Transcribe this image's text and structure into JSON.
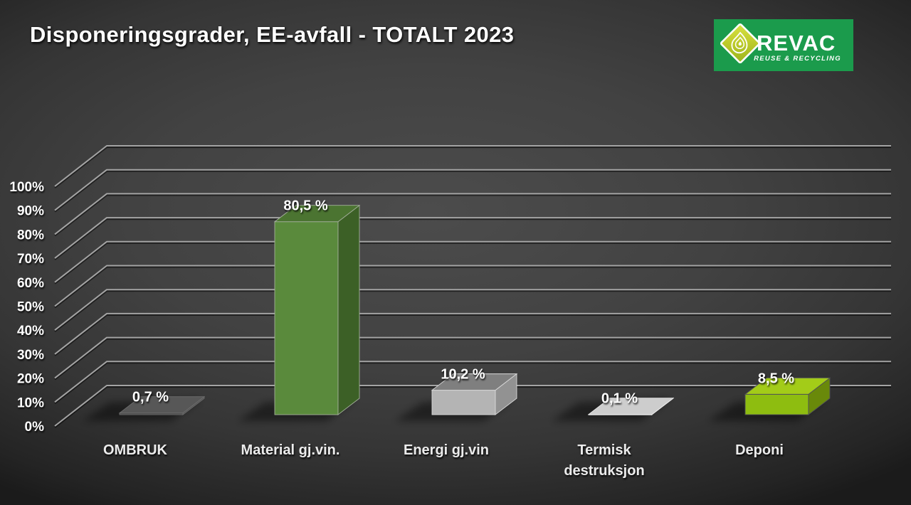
{
  "slide": {
    "title": "Disponeringsgrader, EE-avfall - TOTALT 2023"
  },
  "logo": {
    "brand": "REVAC",
    "tagline": "REUSE & RECYCLING",
    "bg_color": "#1b9b4c",
    "emblem": "drop-in-diamond-icon"
  },
  "chart_data": {
    "type": "bar",
    "style": "3d-perspective-column",
    "title": "Disponeringsgrader, EE-avfall - TOTALT 2023",
    "categories": [
      "OMBRUK",
      "Material gj.vin.",
      "Energi gj.vin",
      "Termisk destruksjon",
      "Deponi"
    ],
    "category_lines": [
      [
        "OMBRUK"
      ],
      [
        "Material gj.vin."
      ],
      [
        "Energi gj.vin"
      ],
      [
        "Termisk",
        "destruksjon"
      ],
      [
        "Deponi"
      ]
    ],
    "values": [
      0.7,
      80.5,
      10.2,
      0.1,
      8.5
    ],
    "value_labels": [
      "0,7 %",
      "80,5 %",
      "10,2 %",
      "0,1 %",
      "8,5 %"
    ],
    "unit": "%",
    "ylim": [
      0,
      100
    ],
    "ytick_step": 10,
    "yticks": [
      "0%",
      "10%",
      "20%",
      "30%",
      "40%",
      "50%",
      "60%",
      "70%",
      "80%",
      "90%",
      "100%"
    ],
    "grid": true,
    "legend": false,
    "bar_colors": [
      {
        "front": "#484848",
        "top": "#575757",
        "side": "#4f4f4f",
        "edge": "#6d6d6d"
      },
      {
        "front": "#5a8a3c",
        "top": "#4b7431",
        "side": "#3c6026",
        "edge": "#a3af9b"
      },
      {
        "front": "#b4b4b4",
        "top": "#7f7f7f",
        "side": "#929292",
        "edge": "#d9d9d9"
      },
      {
        "front": "#c4c4c4",
        "top": "#cdcdcd",
        "side": "#b0b0b0",
        "edge": "#e8e8e8"
      },
      {
        "front": "#8ebd10",
        "top": "#a3cc18",
        "side": "#69890a",
        "edge": "#4f4f58"
      }
    ],
    "gridline_color": "#a4a4a4",
    "label_color": "#ffffff"
  }
}
